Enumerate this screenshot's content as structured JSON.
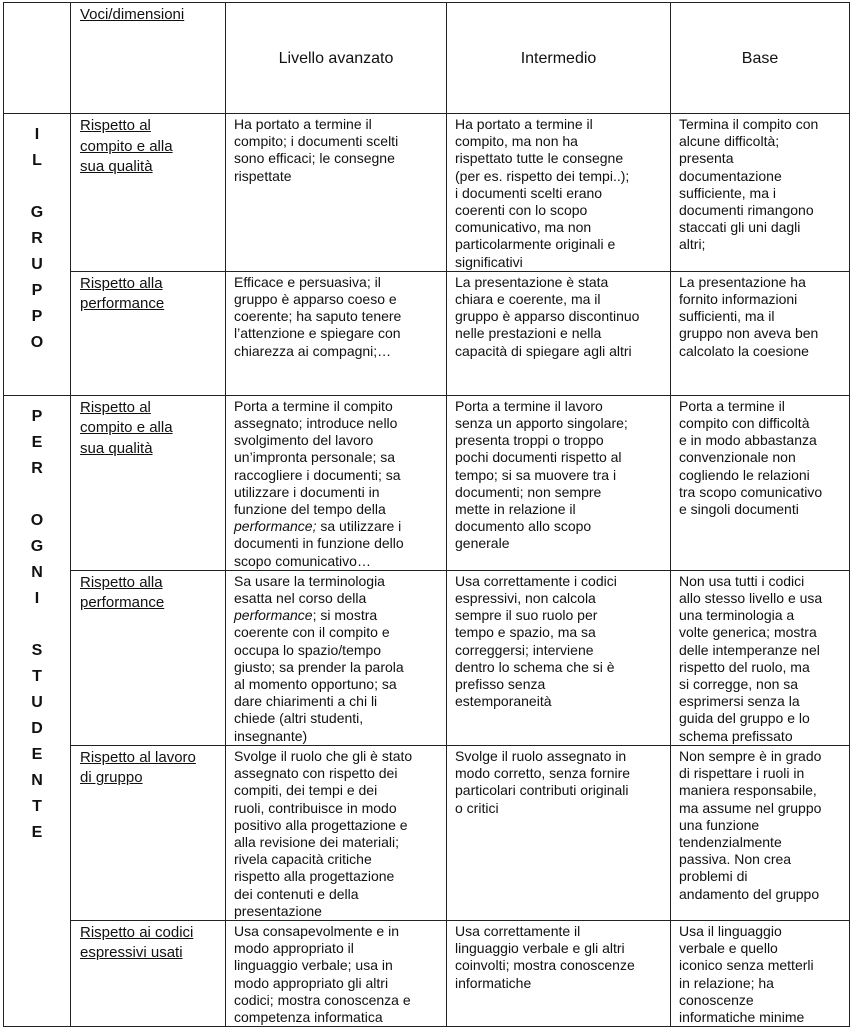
{
  "header": {
    "dimensions_label": "Voci/dimensioni",
    "levels": [
      "Livello avanzato",
      "Intermedio",
      "Base"
    ]
  },
  "groups": [
    {
      "letters": [
        "I",
        "L",
        "",
        "G",
        "R",
        "U",
        "P",
        "P",
        "O"
      ],
      "rows": [
        {
          "dimension": "Rispetto al\ncompito e alla\nsua qualità",
          "cells": [
            [
              {
                "t": "Ha  portato a termine il\ncompito; i documenti scelti\nsono efficaci; le consegne\nrispettate"
              }
            ],
            [
              {
                "t": "Ha portato a termine il\ncompito, ma non ha\nrispettato tutte le consegne\n(per es. rispetto dei tempi..);\ni documenti scelti erano\ncoerenti con lo scopo\ncomunicativo, ma non\nparticolarmente originali e\nsignificativi"
              }
            ],
            [
              {
                "t": "Termina il compito con\nalcune difficoltà;\npresenta\ndocumentazione\nsufficiente, ma i\ndocumenti rimangono\nstaccati gli uni dagli\naltri;"
              }
            ]
          ]
        },
        {
          "dimension": "Rispetto alla\nperformance",
          "cells": [
            [
              {
                "t": "Efficace e persuasiva; il\ngruppo è apparso coeso e\ncoerente; ha saputo tenere\nl’attenzione e spiegare con\nchiarezza ai compagni;…"
              }
            ],
            [
              {
                "t": "La presentazione è stata\nchiara e coerente, ma il\ngruppo è apparso discontinuo\nnelle prestazioni e nella\ncapacità di spiegare agli altri"
              }
            ],
            [
              {
                "t": "La presentazione ha\nfornito informazioni\nsufficienti, ma il\ngruppo non aveva ben\ncalcolato la coesione"
              }
            ]
          ]
        }
      ]
    },
    {
      "letters": [
        "P",
        "E",
        "R",
        "",
        "O",
        "G",
        "N",
        "I",
        "",
        "S",
        "T",
        "U",
        "D",
        "E",
        "N",
        "T",
        "E"
      ],
      "rows": [
        {
          "dimension": "Rispetto al\ncompito e alla\nsua qualità",
          "cells": [
            [
              {
                "t": "Porta a termine il compito\nassegnato; introduce nello\nsvolgimento del lavoro\nun’impronta personale; sa\nraccogliere i documenti; sa\nutilizzare i  documenti in\nfunzione del tempo della\n"
              },
              {
                "t": "performance;",
                "i": true
              },
              {
                "t": " sa utilizzare i\ndocumenti in funzione dello\nscopo comunicativo…"
              }
            ],
            [
              {
                "t": "Porta a termine il lavoro\nsenza un apporto singolare;\npresenta troppi o troppo\npochi documenti rispetto al\ntempo; si sa muovere tra i\ndocumenti; non sempre\nmette in relazione il\ndocumento allo scopo\ngenerale"
              }
            ],
            [
              {
                "t": "Porta a termine il\ncompito con difficoltà\ne in modo abbastanza\nconvenzionale non\ncogliendo le relazioni\ntra scopo comunicativo\ne singoli documenti"
              }
            ]
          ]
        },
        {
          "dimension": "Rispetto alla\nperformance",
          "cells": [
            [
              {
                "t": "Sa usare la terminologia\nesatta nel corso della\n"
              },
              {
                "t": "performance",
                "i": true
              },
              {
                "t": "; si mostra\ncoerente con il compito e\noccupa lo spazio/tempo\ngiusto; sa prender la parola\nal momento opportuno; sa\ndare chiarimenti a chi li\nchiede (altri studenti,\ninsegnante)"
              }
            ],
            [
              {
                "t": "Usa correttamente i codici\nespressivi, non calcola\nsempre il suo ruolo per\ntempo e spazio, ma sa\ncorreggersi; interviene\ndentro lo schema che si è\nprefisso senza\nestemporaneità"
              }
            ],
            [
              {
                "t": "Non usa tutti i codici\nallo stesso livello e usa\nuna terminologia a\nvolte generica; mostra\ndelle intemperanze nel\nrispetto del ruolo, ma\nsi corregge, non sa\nesprimersi senza la\nguida del gruppo e lo\nschema prefissato"
              }
            ]
          ]
        },
        {
          "dimension": "Rispetto al lavoro\ndi gruppo",
          "cells": [
            [
              {
                "t": "Svolge il ruolo che gli è stato\nassegnato con rispetto dei\ncompiti, dei tempi e dei\nruoli, contribuisce in modo\npositivo alla progettazione e\nalla revisione dei materiali;\nrivela capacità critiche\nrispetto alla progettazione\ndei contenuti e della\npresentazione"
              }
            ],
            [
              {
                "t": "Svolge il ruolo assegnato in\nmodo corretto, senza fornire\nparticolari contributi originali\no critici"
              }
            ],
            [
              {
                "t": "Non sempre è in grado\ndi rispettare i ruoli in\nmaniera responsabile,\nma assume nel gruppo\nuna funzione\ntendenzialmente\npassiva. Non crea\nproblemi di\nandamento del gruppo"
              }
            ]
          ]
        },
        {
          "dimension": "Rispetto ai codici\nespressivi usati",
          "cells": [
            [
              {
                "t": "Usa consapevolmente e in\nmodo appropriato il\nlinguaggio verbale; usa in\nmodo appropriato gli altri\ncodici; mostra conoscenza e\ncompetenza informatica"
              }
            ],
            [
              {
                "t": "Usa correttamente il\nlinguaggio verbale e gli altri\ncoinvolti; mostra conoscenze\ninformatiche"
              }
            ],
            [
              {
                "t": "Usa il linguaggio\nverbale e quello\niconico senza metterli\nin relazione; ha\nconoscenze\ninformatiche minime"
              }
            ]
          ]
        }
      ]
    }
  ]
}
